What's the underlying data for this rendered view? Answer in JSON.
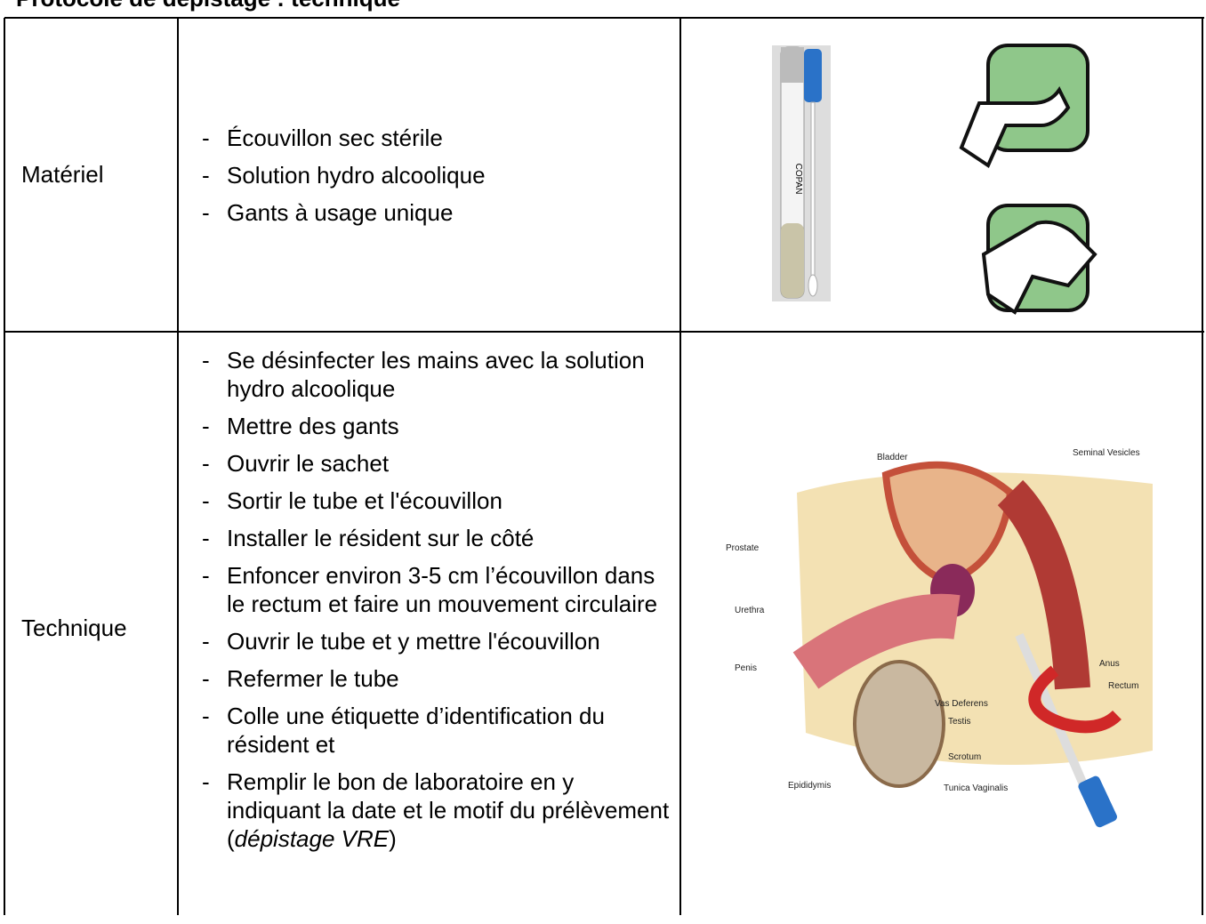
{
  "header": {
    "title": "Protocole de dépistage : technique"
  },
  "table": {
    "rows": [
      {
        "label": "Matériel",
        "items": [
          "Écouvillon sec stérile",
          "Solution hydro alcoolique",
          "Gants à usage unique"
        ],
        "image": {
          "tube_label": "COPAN"
        }
      },
      {
        "label": "Technique",
        "items": [
          [
            "Se désinfecter les mains avec la solution hydro alcoolique"
          ],
          [
            "Mettre des gants"
          ],
          [
            "Ouvrir le sachet"
          ],
          [
            "Sortir le tube et l'écouvillon"
          ],
          [
            "Installer le résident sur le côté"
          ],
          [
            "Enfoncer environ 3-5 cm l’écouvillon dans le rectum et faire un mouvement circulaire"
          ],
          [
            "Ouvrir le tube et y mettre l'écouvillon"
          ],
          [
            "Refermer le tube"
          ],
          [
            "Colle une étiquette d’identification du résident et"
          ],
          [
            "Remplir le bon de laboratoire en y indiquant la date et le motif du prélèvement (",
            "dépistage VRE",
            ")"
          ]
        ],
        "image": {
          "labels": [
            "Bladder",
            "Seminal Vesicles",
            "Prostate",
            "Urethra",
            "Penis",
            "Vas Deferens",
            "Testis",
            "Scrotum",
            "Epididymis",
            "Tunica Vaginalis",
            "Rectum",
            "Anus"
          ]
        }
      }
    ]
  }
}
